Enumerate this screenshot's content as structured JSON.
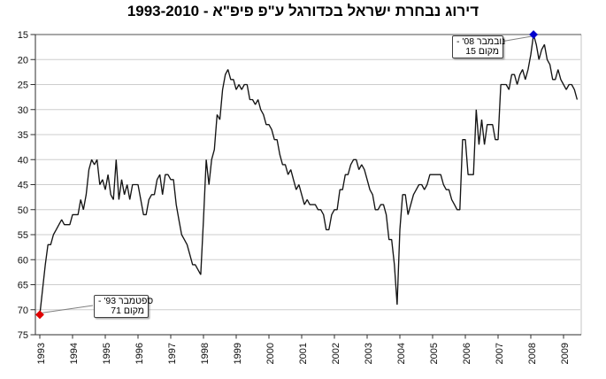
{
  "title": "דירוג נבחרת ישראל בכדורגל ע\"פ פיפ\"א - 1993-2010",
  "annotations": {
    "peak": {
      "line1": "- '08 נובמבר",
      "line2": "15 מקום"
    },
    "start": {
      "line1": "- '93 ספטמבר",
      "line2": "71 מקום"
    }
  },
  "chart_data": {
    "type": "line",
    "title": "דירוג נבחרת ישראל בכדורגל ע\"פ פיפ\"א - 1993-2010",
    "xlabel": "",
    "ylabel": "",
    "x_unit": "month",
    "x_start": "ספטמבר 1993",
    "x_tick_labels": [
      "1993",
      "1994",
      "1995",
      "1996",
      "1997",
      "1998",
      "1999",
      "2000",
      "2001",
      "2002",
      "2003",
      "2004",
      "2005",
      "2006",
      "2007",
      "2008",
      "2009"
    ],
    "y_ticks": [
      15,
      20,
      25,
      30,
      35,
      40,
      45,
      50,
      55,
      60,
      65,
      70,
      75
    ],
    "ylim": [
      15,
      75
    ],
    "y_axis_inverted": true,
    "grid": "horizontal",
    "legend": "none",
    "series": [
      {
        "name": "דירוג פיפ\"א",
        "values": [
          71,
          66,
          61,
          57,
          57,
          55,
          54,
          53,
          52,
          53,
          53,
          53,
          51,
          51,
          51,
          48,
          50,
          47,
          42,
          40,
          41,
          40,
          45,
          44,
          46,
          43,
          47,
          48,
          40,
          48,
          44,
          47,
          45,
          48,
          45,
          45,
          45,
          48,
          51,
          51,
          48,
          47,
          47,
          44,
          43,
          47,
          43,
          43,
          44,
          44,
          49,
          52,
          55,
          56,
          57,
          59,
          61,
          61,
          62,
          63,
          52,
          40,
          45,
          40,
          38,
          31,
          32,
          26,
          23,
          22,
          24,
          24,
          26,
          25,
          26,
          25,
          25,
          28,
          28,
          29,
          28,
          30,
          31,
          33,
          33,
          34,
          36,
          36,
          39,
          41,
          41,
          43,
          42,
          44,
          46,
          45,
          47,
          49,
          48,
          49,
          49,
          49,
          50,
          50,
          51,
          54,
          54,
          51,
          50,
          50,
          46,
          46,
          43,
          43,
          41,
          40,
          40,
          42,
          41,
          42,
          44,
          46,
          47,
          50,
          50,
          49,
          49,
          51,
          56,
          56,
          61,
          69,
          54,
          47,
          47,
          51,
          49,
          47,
          46,
          45,
          45,
          46,
          45,
          43,
          43,
          43,
          43,
          43,
          45,
          46,
          46,
          48,
          49,
          50,
          50,
          36,
          36,
          43,
          43,
          43,
          30,
          37,
          32,
          37,
          33,
          33,
          33,
          36,
          36,
          25,
          25,
          25,
          26,
          23,
          23,
          25,
          23,
          22,
          24,
          22,
          19,
          15,
          17,
          20,
          18,
          17,
          20,
          21,
          24,
          24,
          22,
          24,
          25,
          26,
          25,
          25,
          26,
          28
        ]
      }
    ],
    "markers": [
      {
        "series": 0,
        "index": 0,
        "value": 71,
        "label": "ספטמבר '93 - מקום 71",
        "color": "#e00000"
      },
      {
        "series": 0,
        "index": 181,
        "value": 15,
        "label": "נובמבר '08 - מקום 15",
        "color": "#0000cd"
      }
    ],
    "colors": {
      "line": "#141414",
      "grid": "#cdcdcd",
      "frame_top": "#8a8a8a",
      "frame_right": "#c6c6c6",
      "axis": "#2e2e2e",
      "connector": "#808080"
    }
  }
}
